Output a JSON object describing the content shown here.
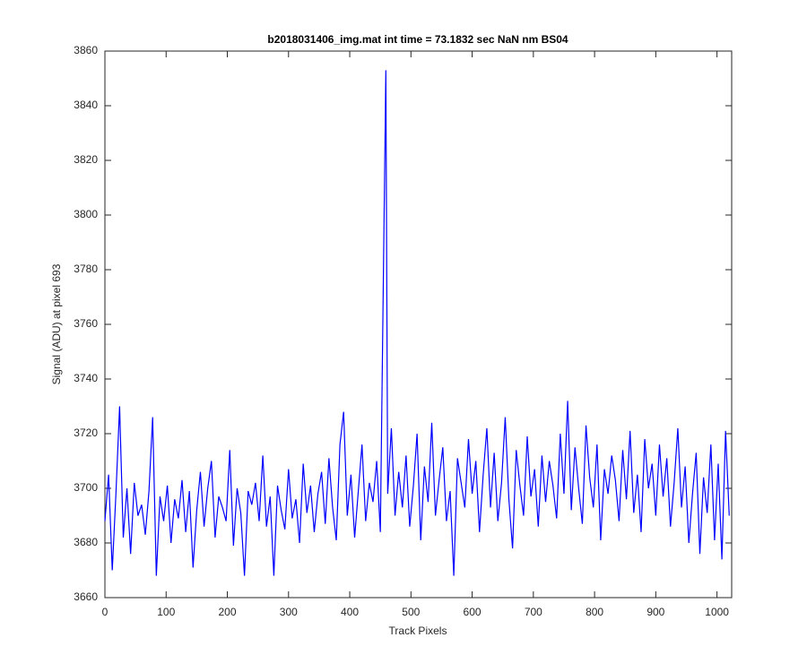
{
  "chart_data": {
    "type": "line",
    "title": "b2018031406_img.mat int time = 73.1832 sec  NaN nm BS04",
    "x_label": "Track Pixels",
    "y_label": "Signal (ADU) at pixel 693",
    "xlim": [
      0,
      1024
    ],
    "ylim": [
      3660,
      3860
    ],
    "xticks": [
      0,
      100,
      200,
      300,
      400,
      500,
      600,
      700,
      800,
      900,
      1000
    ],
    "yticks": [
      3660,
      3680,
      3700,
      3720,
      3740,
      3760,
      3780,
      3800,
      3820,
      3840,
      3860
    ],
    "x": [
      0,
      6,
      12,
      18,
      24,
      30,
      36,
      42,
      48,
      54,
      60,
      66,
      72,
      78,
      84,
      90,
      96,
      102,
      108,
      114,
      120,
      126,
      132,
      138,
      144,
      150,
      156,
      162,
      168,
      174,
      180,
      186,
      192,
      198,
      204,
      210,
      216,
      222,
      228,
      234,
      240,
      246,
      252,
      258,
      264,
      270,
      276,
      282,
      288,
      294,
      300,
      306,
      312,
      318,
      324,
      330,
      336,
      342,
      348,
      354,
      360,
      366,
      372,
      378,
      384,
      390,
      396,
      402,
      408,
      414,
      420,
      426,
      432,
      438,
      444,
      450,
      459,
      462,
      468,
      474,
      480,
      486,
      492,
      498,
      504,
      510,
      516,
      522,
      528,
      534,
      540,
      546,
      552,
      558,
      564,
      570,
      576,
      582,
      588,
      594,
      600,
      606,
      612,
      618,
      624,
      630,
      636,
      642,
      648,
      654,
      660,
      666,
      672,
      678,
      684,
      690,
      696,
      702,
      708,
      714,
      720,
      726,
      732,
      738,
      744,
      750,
      756,
      762,
      768,
      774,
      780,
      786,
      792,
      798,
      804,
      810,
      816,
      822,
      828,
      834,
      840,
      846,
      852,
      858,
      864,
      870,
      876,
      882,
      888,
      894,
      900,
      906,
      912,
      918,
      924,
      930,
      936,
      942,
      948,
      954,
      960,
      966,
      972,
      978,
      984,
      990,
      996,
      1002,
      1008,
      1014,
      1020
    ],
    "series": [
      {
        "color": "#0000ff",
        "values": [
          3688,
          3705,
          3670,
          3698,
          3730,
          3682,
          3700,
          3676,
          3702,
          3690,
          3694,
          3683,
          3699,
          3726,
          3668,
          3697,
          3688,
          3701,
          3680,
          3696,
          3689,
          3703,
          3684,
          3699,
          3671,
          3692,
          3706,
          3686,
          3700,
          3710,
          3682,
          3697,
          3693,
          3688,
          3714,
          3679,
          3700,
          3691,
          3668,
          3699,
          3694,
          3702,
          3688,
          3712,
          3686,
          3697,
          3668,
          3701,
          3692,
          3685,
          3707,
          3689,
          3696,
          3680,
          3709,
          3691,
          3701,
          3684,
          3698,
          3706,
          3687,
          3711,
          3693,
          3681,
          3716,
          3728,
          3690,
          3705,
          3682,
          3699,
          3716,
          3688,
          3702,
          3695,
          3710,
          3684,
          3853,
          3698,
          3722,
          3690,
          3706,
          3693,
          3712,
          3686,
          3701,
          3720,
          3681,
          3708,
          3695,
          3724,
          3690,
          3703,
          3715,
          3688,
          3699,
          3668,
          3711,
          3702,
          3693,
          3718,
          3698,
          3710,
          3684,
          3705,
          3722,
          3693,
          3713,
          3688,
          3702,
          3726,
          3696,
          3678,
          3714,
          3701,
          3690,
          3719,
          3697,
          3707,
          3686,
          3712,
          3695,
          3710,
          3701,
          3689,
          3720,
          3698,
          3732,
          3692,
          3715,
          3700,
          3687,
          3723,
          3704,
          3693,
          3716,
          3681,
          3707,
          3698,
          3712,
          3703,
          3688,
          3714,
          3696,
          3721,
          3691,
          3705,
          3684,
          3718,
          3700,
          3709,
          3690,
          3716,
          3697,
          3711,
          3686,
          3702,
          3722,
          3693,
          3708,
          3680,
          3698,
          3713,
          3676,
          3704,
          3691,
          3716,
          3681,
          3709,
          3674,
          3721,
          3690
        ]
      }
    ]
  }
}
